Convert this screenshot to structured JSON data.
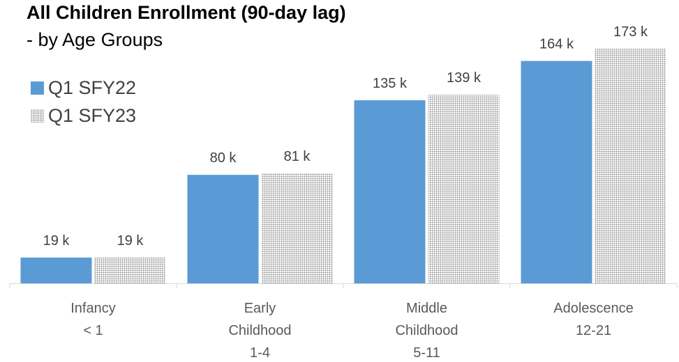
{
  "chart_data": {
    "type": "bar",
    "title": "All Children Enrollment",
    "title_suffix": "(90-day lag)",
    "subtitle": "- by Age Groups",
    "categories": [
      [
        "Infancy",
        "< 1"
      ],
      [
        "Early",
        "Childhood",
        "1-4"
      ],
      [
        "Middle",
        "Childhood",
        "5-11"
      ],
      [
        "Adolescence",
        "12-21"
      ]
    ],
    "series": [
      {
        "name": "Q1 SFY22",
        "values": [
          19,
          80,
          135,
          164
        ],
        "labels": [
          "19 k",
          "80 k",
          "135 k",
          "164 k"
        ],
        "color": "#5b9bd5",
        "pattern": "solid"
      },
      {
        "name": "Q1 SFY23",
        "values": [
          19,
          81,
          139,
          173
        ],
        "labels": [
          "19 k",
          "81 k",
          "139 k",
          "173 k"
        ],
        "color": "#8c8c8c",
        "pattern": "dotted"
      }
    ],
    "ylim": [
      0,
      190
    ],
    "grid": false,
    "legend_position": "top-left"
  }
}
